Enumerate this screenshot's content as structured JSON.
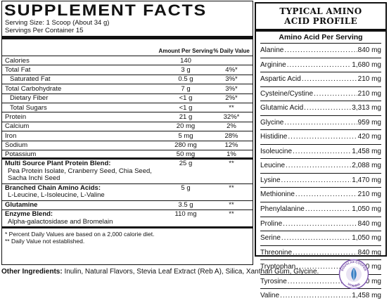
{
  "facts": {
    "title": "SUPPLEMENT FACTS",
    "serving_size": "Serving Size: 1 Scoop (About 34 g)",
    "servings_per_container": "Servings Per Container 15",
    "col_amount": "Amount Per Serving",
    "col_dv": "% Daily Value",
    "rows": [
      {
        "name": "Calories",
        "amount": "140",
        "dv": ""
      },
      {
        "name": "Total Fat",
        "amount": "3 g",
        "dv": "4%*"
      },
      {
        "name": "Saturated Fat",
        "amount": "0.5 g",
        "dv": "3%*"
      },
      {
        "name": "Total Carbohydrate",
        "amount": "7 g",
        "dv": "3%*"
      },
      {
        "name": "Dietary Fiber",
        "amount": "<1 g",
        "dv": "2%*"
      },
      {
        "name": "Total Sugars",
        "amount": "<1 g",
        "dv": "**"
      },
      {
        "name": "Protein",
        "amount": "21 g",
        "dv": "32%*"
      },
      {
        "name": "Calcium",
        "amount": "20 mg",
        "dv": "2%"
      },
      {
        "name": "Iron",
        "amount": "5 mg",
        "dv": "28%"
      },
      {
        "name": "Sodium",
        "amount": "280 mg",
        "dv": "12%"
      },
      {
        "name": "Potassium",
        "amount": "50 mg",
        "dv": "1%"
      }
    ],
    "blends": [
      {
        "name": "Multi Source Plant Protein Blend:",
        "desc": "Pea Protein Isolate, Cranberry Seed, Chia Seed, Sacha Inchi Seed",
        "amount": "25 g",
        "dv": "**"
      },
      {
        "name": "Branched Chain Amino Acids:",
        "desc": "L-Leucine, L-Isoleucine, L-Valine",
        "amount": "5 g",
        "dv": "**"
      },
      {
        "name": "Glutamine",
        "desc": "",
        "amount": "3.5 g",
        "dv": "**"
      },
      {
        "name": "Enzyme Blend:",
        "desc": "Alpha-galactosidase and Bromelain",
        "amount": "110 mg",
        "dv": "**"
      }
    ],
    "footnote1": "* Percent Daily Values are based on a 2,000 calorie diet.",
    "footnote2": "** Daily Value not established."
  },
  "amino": {
    "title_line1": "TYPICAL AMINO",
    "title_line2": "ACID PROFILE",
    "subheading": "Amino Acid Per Serving",
    "items": [
      {
        "name": "Alanine",
        "value": "840 mg"
      },
      {
        "name": "Arginine",
        "value": "1,680 mg"
      },
      {
        "name": "Aspartic Acid",
        "value": "210 mg"
      },
      {
        "name": "Cysteine/Cystine",
        "value": "210 mg"
      },
      {
        "name": "Glutamic Acid",
        "value": "3,313 mg"
      },
      {
        "name": "Glycine",
        "value": "959 mg"
      },
      {
        "name": "Histidine",
        "value": "420 mg"
      },
      {
        "name": "Isoleucine",
        "value": "1,458 mg"
      },
      {
        "name": "Leucine",
        "value": "2,088 mg"
      },
      {
        "name": "Lysine",
        "value": "1,470 mg"
      },
      {
        "name": "Methionine",
        "value": "210 mg"
      },
      {
        "name": "Phenylalanine",
        "value": "1,050 mg"
      },
      {
        "name": "Proline",
        "value": "840 mg"
      },
      {
        "name": "Serine",
        "value": "1,050 mg"
      },
      {
        "name": "Threonine",
        "value": "840 mg"
      },
      {
        "name": "Tryptophan",
        "value": "210 mg"
      },
      {
        "name": "Tyrosine",
        "value": "840 mg"
      },
      {
        "name": "Valine",
        "value": "1,458 mg"
      }
    ]
  },
  "ingredients": {
    "label": "Other Ingredients:",
    "text": "Inulin, Natural Flavors, Stevia Leaf Extract (Reb A), Silica, Xanthan Gum, Glycine."
  },
  "logo": {
    "text_top": "DOUGLAS COOPER",
    "text_bottom": "VITAMINS",
    "colors": {
      "purple": "#6b3fa0",
      "blue": "#3a7fc4",
      "ring": "#7e57b0"
    }
  }
}
